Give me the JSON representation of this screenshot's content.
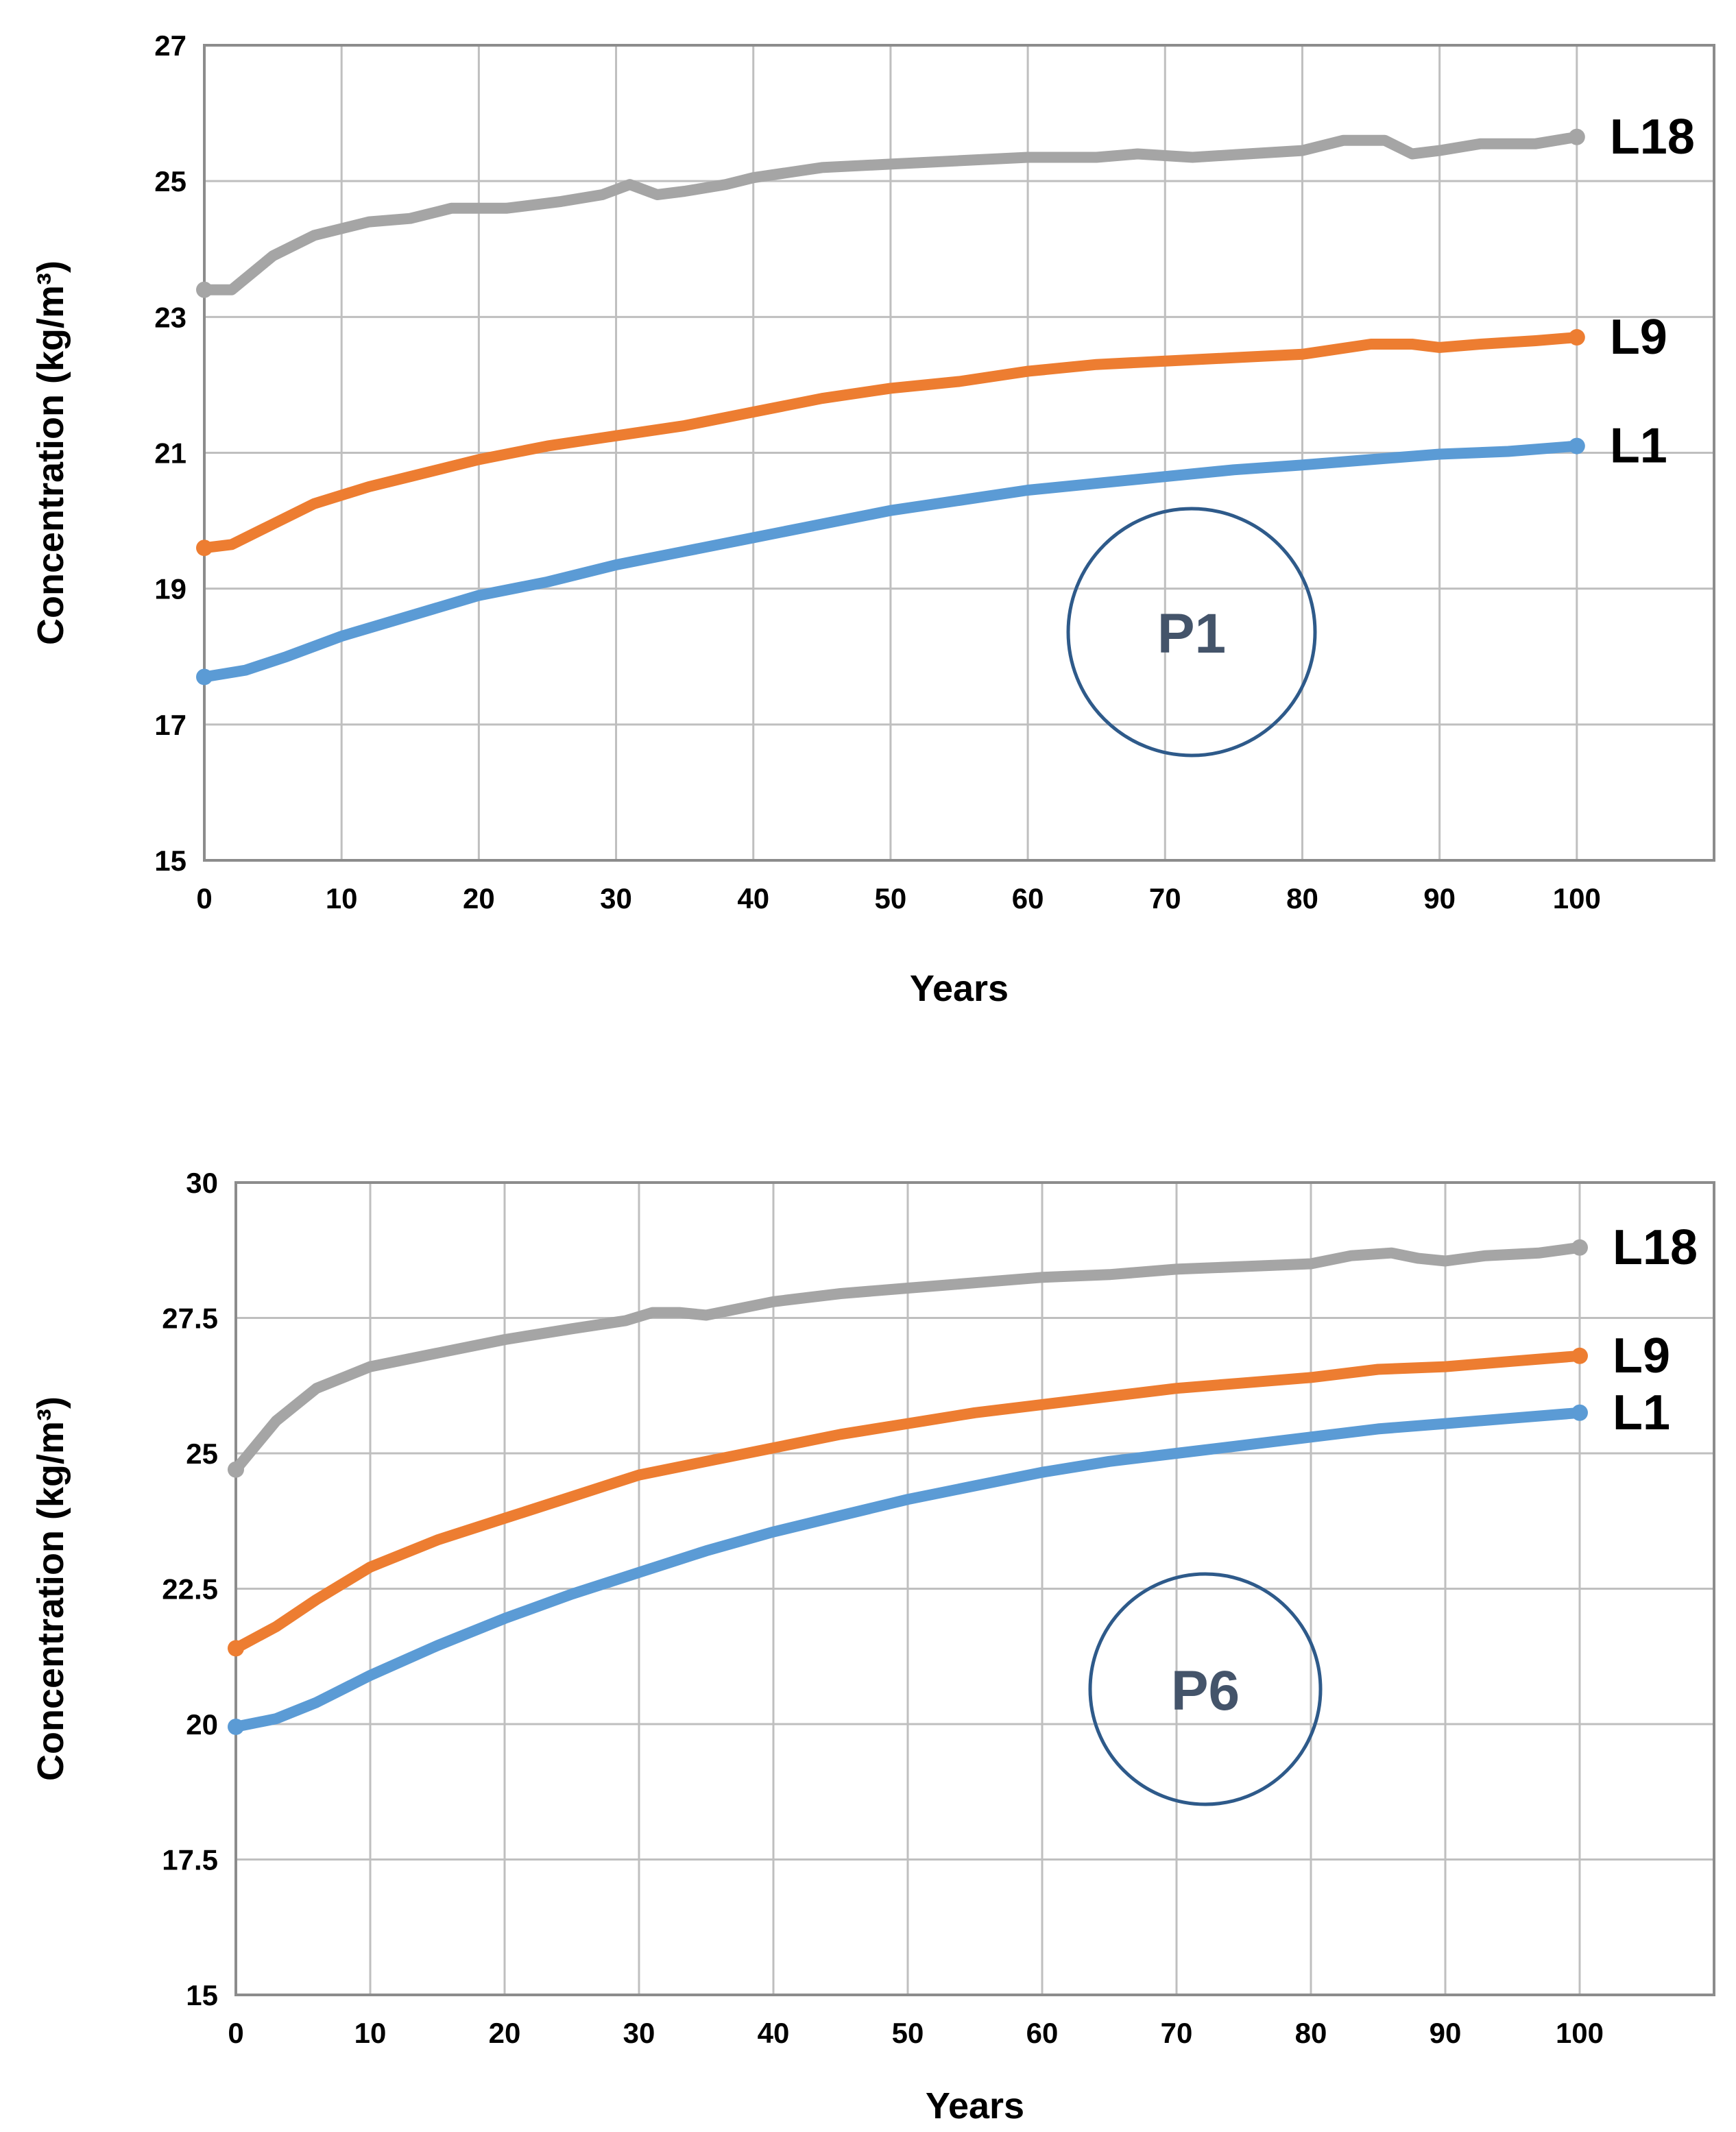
{
  "chart_data": [
    {
      "type": "line",
      "panel_label": "P1",
      "xlabel": "Years",
      "ylabel": "Concentration (kg/m³)",
      "xlim": [
        0,
        110
      ],
      "ylim": [
        15,
        27
      ],
      "xticks": [
        "0",
        "10",
        "20",
        "30",
        "40",
        "50",
        "60",
        "70",
        "80",
        "90",
        "100"
      ],
      "yticks": [
        "15",
        "17",
        "19",
        "21",
        "23",
        "25",
        "27"
      ],
      "series": [
        {
          "name": "L18",
          "color": "#a5a5a5",
          "x": [
            0,
            2,
            5,
            8,
            12,
            15,
            18,
            22,
            26,
            29,
            31,
            33,
            35,
            38,
            40,
            45,
            50,
            55,
            60,
            65,
            68,
            72,
            76,
            80,
            83,
            86,
            88,
            90,
            93,
            97,
            100
          ],
          "y": [
            23.4,
            23.4,
            23.9,
            24.2,
            24.4,
            24.45,
            24.6,
            24.6,
            24.7,
            24.8,
            24.95,
            24.8,
            24.85,
            24.95,
            25.05,
            25.2,
            25.25,
            25.3,
            25.35,
            25.35,
            25.4,
            25.35,
            25.4,
            25.45,
            25.6,
            25.6,
            25.4,
            25.45,
            25.55,
            25.55,
            25.65
          ]
        },
        {
          "name": "L9",
          "color": "#ed7d31",
          "x": [
            0,
            2,
            5,
            8,
            12,
            15,
            20,
            25,
            30,
            35,
            40,
            45,
            50,
            55,
            60,
            65,
            70,
            75,
            80,
            85,
            88,
            90,
            93,
            97,
            100
          ],
          "y": [
            19.6,
            19.65,
            19.95,
            20.25,
            20.5,
            20.65,
            20.9,
            21.1,
            21.25,
            21.4,
            21.6,
            21.8,
            21.95,
            22.05,
            22.2,
            22.3,
            22.35,
            22.4,
            22.45,
            22.6,
            22.6,
            22.55,
            22.6,
            22.65,
            22.7
          ]
        },
        {
          "name": "L1",
          "color": "#5b9bd5",
          "x": [
            0,
            3,
            6,
            10,
            15,
            20,
            25,
            30,
            35,
            40,
            45,
            50,
            55,
            60,
            65,
            70,
            75,
            80,
            85,
            90,
            95,
            100
          ],
          "y": [
            17.7,
            17.8,
            18.0,
            18.3,
            18.6,
            18.9,
            19.1,
            19.35,
            19.55,
            19.75,
            19.95,
            20.15,
            20.3,
            20.45,
            20.55,
            20.65,
            20.75,
            20.82,
            20.9,
            20.98,
            21.02,
            21.1
          ]
        }
      ]
    },
    {
      "type": "line",
      "panel_label": "P6",
      "xlabel": "Years",
      "ylabel": "Concentration (kg/m³)",
      "xlim": [
        0,
        110
      ],
      "ylim": [
        15,
        30
      ],
      "xticks": [
        "0",
        "10",
        "20",
        "30",
        "40",
        "50",
        "60",
        "70",
        "80",
        "90",
        "100"
      ],
      "yticks": [
        "15",
        "17.5",
        "20",
        "22.5",
        "25",
        "27.5",
        "30"
      ],
      "series": [
        {
          "name": "L18",
          "color": "#a5a5a5",
          "x": [
            0,
            3,
            6,
            10,
            15,
            20,
            25,
            29,
            31,
            33,
            35,
            40,
            45,
            50,
            55,
            60,
            65,
            70,
            75,
            80,
            83,
            86,
            88,
            90,
            93,
            97,
            100
          ],
          "y": [
            24.7,
            25.6,
            26.2,
            26.6,
            26.85,
            27.1,
            27.3,
            27.45,
            27.6,
            27.6,
            27.55,
            27.8,
            27.95,
            28.05,
            28.15,
            28.25,
            28.3,
            28.4,
            28.45,
            28.5,
            28.65,
            28.7,
            28.6,
            28.55,
            28.65,
            28.7,
            28.8
          ]
        },
        {
          "name": "L9",
          "color": "#ed7d31",
          "x": [
            0,
            3,
            6,
            10,
            15,
            20,
            25,
            30,
            35,
            40,
            45,
            50,
            55,
            60,
            65,
            70,
            75,
            80,
            85,
            90,
            95,
            100
          ],
          "y": [
            21.4,
            21.8,
            22.3,
            22.9,
            23.4,
            23.8,
            24.2,
            24.6,
            24.85,
            25.1,
            25.35,
            25.55,
            25.75,
            25.9,
            26.05,
            26.2,
            26.3,
            26.4,
            26.55,
            26.6,
            26.7,
            26.8
          ]
        },
        {
          "name": "L1",
          "color": "#5b9bd5",
          "x": [
            0,
            3,
            6,
            10,
            15,
            20,
            25,
            30,
            35,
            40,
            45,
            50,
            55,
            60,
            65,
            70,
            75,
            80,
            85,
            90,
            95,
            100
          ],
          "y": [
            19.95,
            20.1,
            20.4,
            20.9,
            21.45,
            21.95,
            22.4,
            22.8,
            23.2,
            23.55,
            23.85,
            24.15,
            24.4,
            24.65,
            24.85,
            25.0,
            25.15,
            25.3,
            25.45,
            25.55,
            25.65,
            25.75
          ]
        }
      ]
    }
  ]
}
